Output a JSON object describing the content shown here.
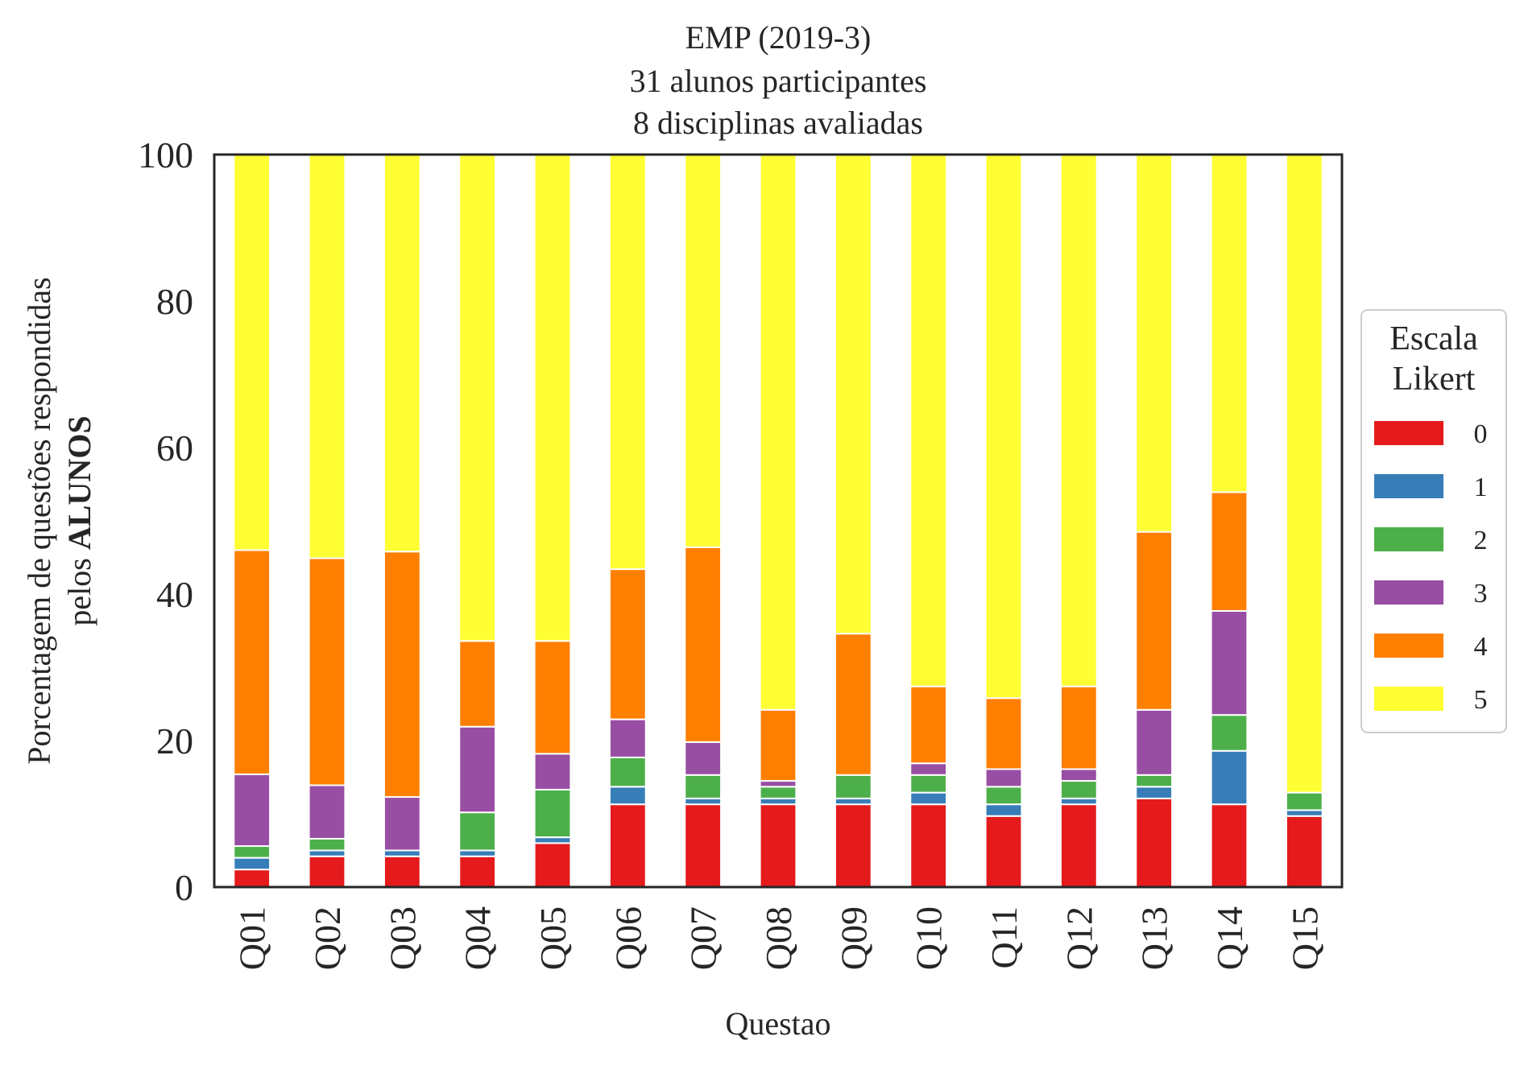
{
  "chart_data": {
    "type": "bar",
    "stacked": true,
    "title_lines": [
      "EMP (2019-3)",
      "31 alunos participantes",
      "8 disciplinas avaliadas"
    ],
    "xlabel": "Questao",
    "ylabel_line1": "Porcentagem de questões respondidas",
    "ylabel_line2_prefix": "pelos ",
    "ylabel_line2_bold": "ALUNOS",
    "ylim": [
      0,
      100
    ],
    "yticks": [
      "0",
      "20",
      "40",
      "60",
      "80",
      "100"
    ],
    "categories": [
      "Q01",
      "Q02",
      "Q03",
      "Q04",
      "Q05",
      "Q06",
      "Q07",
      "Q08",
      "Q09",
      "Q10",
      "Q11",
      "Q12",
      "Q13",
      "Q14",
      "Q15"
    ],
    "legend": {
      "title_lines": [
        "Escala",
        "Likert"
      ],
      "placement": "center-right, outside plot"
    },
    "grid": false,
    "series": [
      {
        "name": "0",
        "color": "#e41a1c",
        "values": [
          2.4,
          4.2,
          4.2,
          4.2,
          6.0,
          11.3,
          11.3,
          11.3,
          11.3,
          11.3,
          9.7,
          11.3,
          12.1,
          11.3,
          9.7
        ]
      },
      {
        "name": "1",
        "color": "#377eb8",
        "values": [
          1.6,
          0.8,
          0.8,
          0.8,
          0.8,
          2.4,
          0.8,
          0.8,
          0.8,
          1.6,
          1.6,
          0.8,
          1.6,
          7.3,
          0.8
        ]
      },
      {
        "name": "2",
        "color": "#4daf4a",
        "values": [
          1.6,
          1.6,
          0.0,
          5.2,
          6.5,
          4.0,
          3.2,
          1.6,
          3.2,
          2.4,
          2.4,
          2.4,
          1.6,
          4.9,
          2.4
        ]
      },
      {
        "name": "3",
        "color": "#984ea3",
        "values": [
          9.8,
          7.3,
          7.3,
          11.7,
          4.9,
          5.2,
          4.5,
          0.8,
          0.0,
          1.6,
          2.4,
          1.6,
          8.9,
          14.2,
          0.0
        ]
      },
      {
        "name": "4",
        "color": "#ff7f00",
        "values": [
          30.6,
          31.0,
          33.5,
          11.7,
          15.4,
          20.5,
          26.6,
          9.7,
          19.3,
          10.5,
          9.7,
          11.3,
          24.3,
          16.2,
          0.0
        ]
      },
      {
        "name": "5",
        "color": "#ffff33",
        "values": [
          54.0,
          55.1,
          54.2,
          66.4,
          66.4,
          56.6,
          53.6,
          75.8,
          65.4,
          72.6,
          74.2,
          72.6,
          51.5,
          46.1,
          87.1
        ]
      }
    ]
  }
}
